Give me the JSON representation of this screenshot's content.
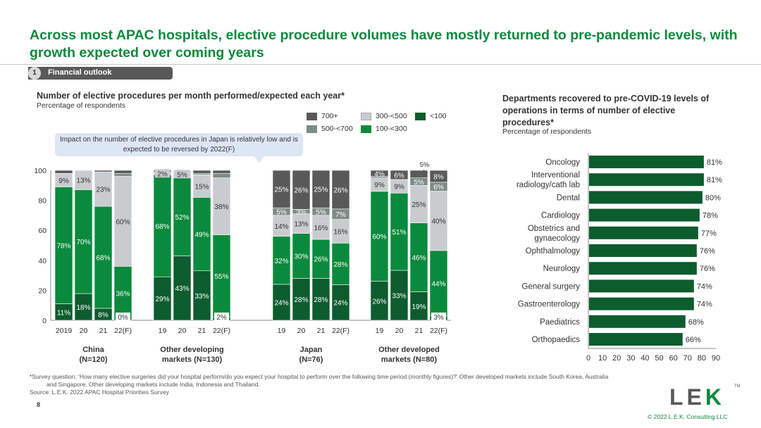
{
  "title": "Across most APAC hospitals, elective procedure volumes have mostly returned to pre-pandemic levels, with growth expected over coming years",
  "section": {
    "number": "1",
    "label": "Financial outlook"
  },
  "left_chart": {
    "title": "Number of elective procedures per month performed/expected each year*",
    "subtitle": "Percentage of respondents"
  },
  "right_chart": {
    "title": "Departments recovered to pre-COVID-19 levels of operations in terms of number of elective procedures*",
    "subtitle": "Percentage of respondents"
  },
  "callout": "Impact on the number of elective procedures in Japan is relatively low and is expected to be reversed by 2022(F)",
  "footnotes": {
    "line1": "*Survey question: ‘How many elective surgeries did your hospital perform/do you expect your hospital to perform over the following time period (monthly figures)?’ Other developed markets include South Korea, Australia",
    "line2": "and Singapore. Other developing markets include India, Indonesia and Thailand.",
    "source": "Source: L.E.K. 2022 APAC Hospital Priorities Survey"
  },
  "page_number": "8",
  "logo": {
    "letters": "LEK",
    "l": "L",
    "e": "E",
    "k": "K",
    "tm": "TM"
  },
  "copyright": "© 2022 L.E.K. Consulting LLC",
  "colors": {
    "c700plus": "#595959",
    "c500_700": "#7d8c84",
    "c300_500": "#c8ccce",
    "c100_300": "#0a8a3c",
    "clt100": "#0c5c2e",
    "title_green": "#0a8a3c"
  },
  "chart_data": [
    {
      "type": "bar",
      "stacked": true,
      "ylim": [
        0,
        100
      ],
      "yticks": [
        0,
        20,
        40,
        60,
        80,
        100
      ],
      "legend": [
        "700+",
        "300-<500",
        "<100",
        "500-<700",
        "100-<300"
      ],
      "series_names": [
        "<100",
        "100-<300",
        "300-<500",
        "500-<700",
        "700+"
      ],
      "groups": [
        {
          "name": "China",
          "n": "(N=120)",
          "categories": [
            "2019",
            "20",
            "21",
            "22(F)"
          ],
          "values": [
            [
              11,
              78,
              9,
              0,
              2
            ],
            [
              18,
              70,
              13,
              0,
              0
            ],
            [
              8,
              68,
              23,
              0,
              1
            ],
            [
              0,
              36,
              60,
              2,
              2
            ]
          ],
          "labels": [
            [
              "11%",
              "78%",
              "9%",
              "",
              ""
            ],
            [
              "18%",
              "70%",
              "13%",
              "",
              ""
            ],
            [
              "8%",
              "68%",
              "23%",
              "",
              ""
            ],
            [
              "0%",
              "36%",
              "60%",
              "",
              ""
            ]
          ]
        },
        {
          "name": "Other developing",
          "n": "markets (N=130)",
          "categories": [
            "19",
            "20",
            "21",
            "22(F)"
          ],
          "values": [
            [
              29,
              68,
              2,
              0,
              1
            ],
            [
              43,
              52,
              5,
              0,
              0
            ],
            [
              33,
              49,
              15,
              1,
              2
            ],
            [
              2,
              55,
              38,
              3,
              2
            ]
          ],
          "labels": [
            [
              "29%",
              "68%",
              "2%",
              "",
              ""
            ],
            [
              "43%",
              "52%",
              "5%",
              "",
              ""
            ],
            [
              "33%",
              "49%",
              "15%",
              "",
              ""
            ],
            [
              "2%",
              "55%",
              "38%",
              "",
              ""
            ]
          ]
        },
        {
          "name": "Japan",
          "n": "(N=76)",
          "categories": [
            "19",
            "20",
            "21",
            "22(F)"
          ],
          "values": [
            [
              24,
              32,
              14,
              5,
              25
            ],
            [
              28,
              30,
              13,
              3,
              26
            ],
            [
              28,
              26,
              16,
              5,
              25
            ],
            [
              24,
              28,
              16,
              7,
              26
            ]
          ],
          "labels": [
            [
              "24%",
              "32%",
              "14%",
              "5%",
              "25%"
            ],
            [
              "28%",
              "30%",
              "13%",
              "3%",
              "26%"
            ],
            [
              "28%",
              "26%",
              "16%",
              "5%",
              "25%"
            ],
            [
              "24%",
              "28%",
              "16%",
              "7%",
              "26%"
            ]
          ]
        },
        {
          "name": "Other developed",
          "n": "markets (N=80)",
          "categories": [
            "19",
            "20",
            "21",
            "22(F)"
          ],
          "values": [
            [
              26,
              60,
              9,
              1,
              4
            ],
            [
              33,
              51,
              9,
              0,
              6
            ],
            [
              19,
              46,
              25,
              5,
              5
            ],
            [
              3,
              44,
              40,
              6,
              8
            ]
          ],
          "labels": [
            [
              "26%",
              "60%",
              "9%",
              "",
              "4%"
            ],
            [
              "33%",
              "51%",
              "9%",
              "",
              "6%"
            ],
            [
              "19%",
              "46%",
              "25%",
              "5%",
              ""
            ],
            [
              "3%",
              "44%",
              "40%",
              "6%",
              "8%"
            ]
          ],
          "extra_label": "5%"
        }
      ]
    },
    {
      "type": "bar",
      "orientation": "horizontal",
      "categories": [
        "Oncology",
        "Interventional radiology/cath lab",
        "Dental",
        "Cardiology",
        "Obstetrics and gynaecology",
        "Ophthalmology",
        "Neurology",
        "General surgery",
        "Gastroenterology",
        "Paediatrics",
        "Orthopaedics"
      ],
      "category_lines": [
        [
          "Oncology"
        ],
        [
          "Interventional",
          "radiology/cath lab"
        ],
        [
          "Dental"
        ],
        [
          "Cardiology"
        ],
        [
          "Obstetrics and",
          "gynaecology"
        ],
        [
          "Ophthalmology"
        ],
        [
          "Neurology"
        ],
        [
          "General surgery"
        ],
        [
          "Gastroenterology"
        ],
        [
          "Paediatrics"
        ],
        [
          "Orthopaedics"
        ]
      ],
      "values": [
        81,
        81,
        80,
        78,
        77,
        76,
        76,
        74,
        74,
        68,
        66
      ],
      "value_labels": [
        "81%",
        "81%",
        "80%",
        "78%",
        "77%",
        "76%",
        "76%",
        "74%",
        "74%",
        "68%",
        "66%"
      ],
      "xlim": [
        0,
        90
      ],
      "xticks": [
        0,
        10,
        20,
        30,
        40,
        50,
        60,
        70,
        80,
        90
      ]
    }
  ]
}
